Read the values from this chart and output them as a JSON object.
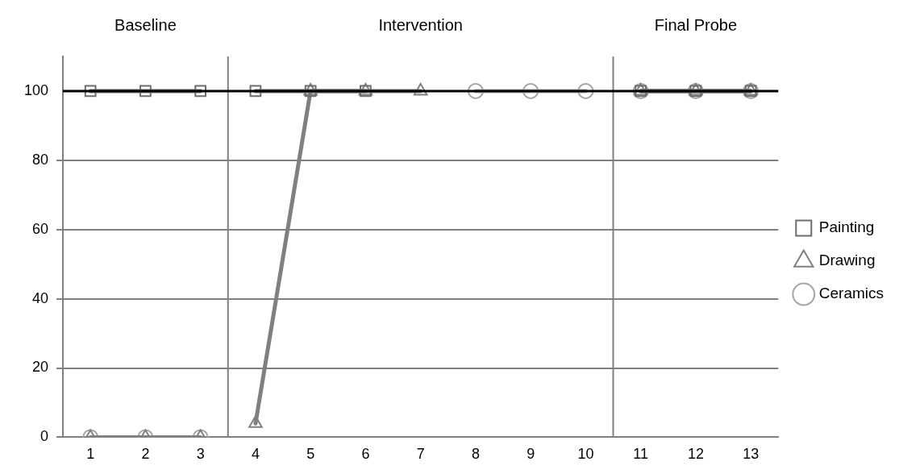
{
  "chart_data": {
    "type": "line",
    "x": [
      1,
      2,
      3,
      4,
      5,
      6,
      7,
      8,
      9,
      10,
      11,
      12,
      13
    ],
    "xlim": [
      0.5,
      13.5
    ],
    "xticks": [
      1,
      2,
      3,
      4,
      5,
      6,
      7,
      8,
      9,
      10,
      11,
      12,
      13
    ],
    "ylim": [
      0,
      110
    ],
    "yticks": [
      0,
      20,
      40,
      60,
      80,
      100
    ],
    "grid": "y",
    "legend": "right",
    "series": [
      {
        "name": "Painting",
        "color": "#6e6e6e",
        "marker": "square",
        "values": [
          100,
          100,
          100,
          100,
          100,
          100,
          null,
          null,
          null,
          null,
          100,
          100,
          100
        ]
      },
      {
        "name": "Drawing",
        "color": "#808080",
        "marker": "triangle",
        "values": [
          0,
          0,
          0,
          4,
          100,
          100,
          100,
          null,
          null,
          null,
          100,
          100,
          100
        ]
      },
      {
        "name": "Ceramics",
        "color": "#a6a6a6",
        "marker": "circle",
        "values": [
          0,
          0,
          0,
          null,
          null,
          null,
          null,
          100,
          100,
          100,
          100,
          100,
          100
        ]
      }
    ],
    "ref_lines": [
      {
        "axis": "x",
        "value": 3.5,
        "color": "#808080"
      },
      {
        "axis": "x",
        "value": 10.5,
        "color": "#808080"
      },
      {
        "axis": "y",
        "value": 100,
        "color": "#000000"
      }
    ],
    "annotations": [
      "Baseline",
      "Intervention",
      "Final Probe"
    ]
  }
}
